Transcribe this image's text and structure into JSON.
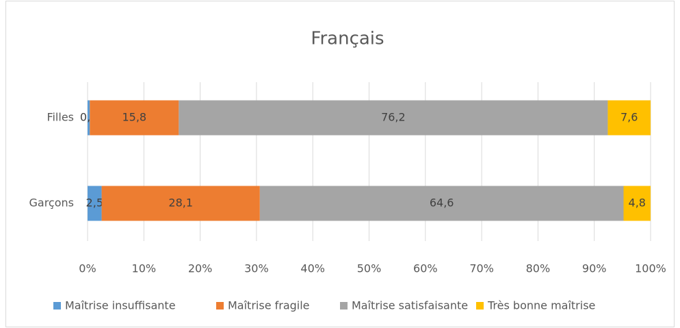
{
  "chart_data": {
    "type": "stacked-barh",
    "title": "Français",
    "categories": [
      "Filles",
      "Garçons"
    ],
    "series": [
      {
        "name": "Maîtrise insuffisante",
        "color": "#5b9bd5",
        "values": [
          0.4,
          2.5
        ],
        "value_labels": [
          "0,4",
          "2,5"
        ]
      },
      {
        "name": "Maîtrise fragile",
        "color": "#ed7d31",
        "values": [
          15.8,
          28.1
        ],
        "value_labels": [
          "15,8",
          "28,1"
        ]
      },
      {
        "name": "Maîtrise satisfaisante",
        "color": "#a5a5a5",
        "values": [
          76.2,
          64.6
        ],
        "value_labels": [
          "76,2",
          "64,6"
        ]
      },
      {
        "name": "Très bonne maîtrise",
        "color": "#ffc000",
        "values": [
          7.6,
          4.8
        ],
        "value_labels": [
          "7,6",
          "4,8"
        ]
      }
    ],
    "xlim": [
      0,
      100
    ],
    "xticks": [
      {
        "value": 0,
        "label": "0%"
      },
      {
        "value": 10,
        "label": "10%"
      },
      {
        "value": 20,
        "label": "20%"
      },
      {
        "value": 30,
        "label": "30%"
      },
      {
        "value": 40,
        "label": "40%"
      },
      {
        "value": 50,
        "label": "50%"
      },
      {
        "value": 60,
        "label": "60%"
      },
      {
        "value": 70,
        "label": "70%"
      },
      {
        "value": 80,
        "label": "80%"
      },
      {
        "value": 90,
        "label": "90%"
      },
      {
        "value": 100,
        "label": "100%"
      }
    ],
    "grid": true,
    "legend": "bottom"
  }
}
